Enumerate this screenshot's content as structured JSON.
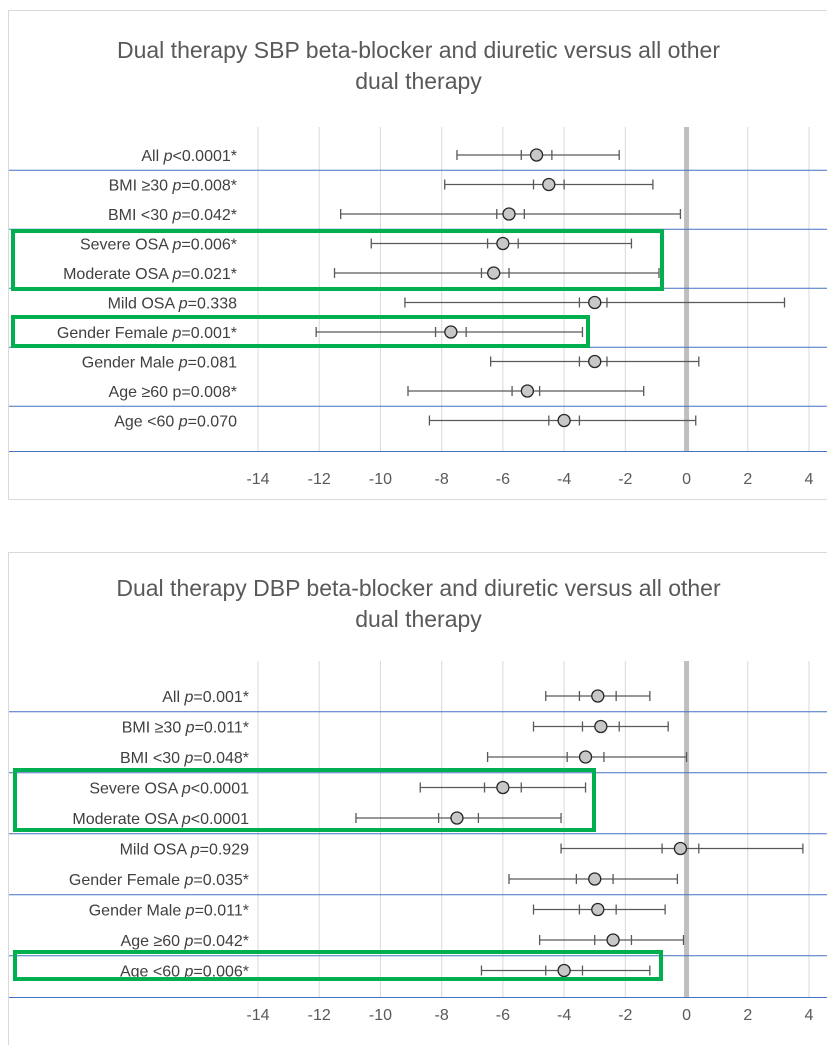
{
  "chart_data": [
    {
      "type": "forest",
      "title_lines": [
        "Dual therapy SBP beta-blocker and diuretic versus all other",
        "dual therapy"
      ],
      "xlim": [
        -14,
        4
      ],
      "xticks": [
        -14,
        -12,
        -10,
        -8,
        -6,
        -4,
        -2,
        0,
        2,
        4
      ],
      "grid": true,
      "rows": [
        {
          "label": "All ",
          "p": "p",
          "p_value": "<0.0001*",
          "mean": -4.9,
          "ci_low": -7.5,
          "ci_high": -2.2,
          "inner_low": -5.4,
          "inner_high": -4.4
        },
        {
          "label": "BMI ≥30 ",
          "p": "p",
          "p_value": "=0.008*",
          "mean": -4.5,
          "ci_low": -7.9,
          "ci_high": -1.1,
          "inner_low": -5.0,
          "inner_high": -4.0
        },
        {
          "label": "BMI <30 ",
          "p": "p",
          "p_value": "=0.042*",
          "mean": -5.8,
          "ci_low": -11.3,
          "ci_high": -0.2,
          "inner_low": -6.2,
          "inner_high": -5.3
        },
        {
          "label": "Severe OSA ",
          "p": "p",
          "p_value": "=0.006*",
          "mean": -6.0,
          "ci_low": -10.3,
          "ci_high": -1.8,
          "inner_low": -6.5,
          "inner_high": -5.5
        },
        {
          "label": "Moderate OSA ",
          "p": "p",
          "p_value": "=0.021*",
          "mean": -6.3,
          "ci_low": -11.5,
          "ci_high": -0.9,
          "inner_low": -6.7,
          "inner_high": -5.8
        },
        {
          "label": "Mild OSA ",
          "p": "p",
          "p_value": "=0.338",
          "mean": -3.0,
          "ci_low": -9.2,
          "ci_high": 3.2,
          "inner_low": -3.5,
          "inner_high": -2.6
        },
        {
          "label": "Gender Female ",
          "p": "p",
          "p_value": "=0.001*",
          "mean": -7.7,
          "ci_low": -12.1,
          "ci_high": -3.4,
          "inner_low": -8.2,
          "inner_high": -7.2
        },
        {
          "label": "Gender Male ",
          "p": "p",
          "p_value": "=0.081",
          "mean": -3.0,
          "ci_low": -6.4,
          "ci_high": 0.4,
          "inner_low": -3.5,
          "inner_high": -2.6
        },
        {
          "label": "Age ≥60 p=0.008*",
          "p": "",
          "p_value": "",
          "mean": -5.2,
          "ci_low": -9.1,
          "ci_high": -1.4,
          "inner_low": -5.7,
          "inner_high": -4.8
        },
        {
          "label": "Age <60 ",
          "p": "p",
          "p_value": "=0.070",
          "mean": -4.0,
          "ci_low": -8.4,
          "ci_high": 0.3,
          "inner_low": -4.5,
          "inner_high": -3.5
        }
      ],
      "highlight_groups": [
        [
          3,
          4
        ],
        [
          6
        ]
      ],
      "colors": {
        "marker_fill": "#c8c8c8",
        "line": "#595959",
        "separator": "#4472c4",
        "highlight": "#00b050",
        "zero_line": "#bfbfbf"
      }
    },
    {
      "type": "forest",
      "title_lines": [
        "Dual therapy DBP beta-blocker and diuretic versus all other",
        "dual therapy"
      ],
      "xlim": [
        -14,
        4
      ],
      "xticks": [
        -14,
        -12,
        -10,
        -8,
        -6,
        -4,
        -2,
        0,
        2,
        4
      ],
      "grid": true,
      "rows": [
        {
          "label": "All ",
          "p": "p",
          "p_value": "=0.001*",
          "mean": -2.9,
          "ci_low": -4.6,
          "ci_high": -1.2,
          "inner_low": -3.5,
          "inner_high": -2.3
        },
        {
          "label": "BMI ≥30 ",
          "p": "p",
          "p_value": "=0.011*",
          "mean": -2.8,
          "ci_low": -5.0,
          "ci_high": -0.6,
          "inner_low": -3.4,
          "inner_high": -2.2
        },
        {
          "label": "BMI <30 ",
          "p": "p",
          "p_value": "=0.048*",
          "mean": -3.3,
          "ci_low": -6.5,
          "ci_high": 0.0,
          "inner_low": -3.9,
          "inner_high": -2.7
        },
        {
          "label": "Severe OSA ",
          "p": "p",
          "p_value": "<0.0001",
          "mean": -6.0,
          "ci_low": -8.7,
          "ci_high": -3.3,
          "inner_low": -6.6,
          "inner_high": -5.4
        },
        {
          "label": "Moderate OSA ",
          "p": "p",
          "p_value": "<0.0001",
          "mean": -7.5,
          "ci_low": -10.8,
          "ci_high": -4.1,
          "inner_low": -8.1,
          "inner_high": -6.8
        },
        {
          "label": "Mild OSA ",
          "p": "p",
          "p_value": "=0.929",
          "mean": -0.2,
          "ci_low": -4.1,
          "ci_high": 3.8,
          "inner_low": -0.8,
          "inner_high": 0.4
        },
        {
          "label": "Gender Female ",
          "p": "p",
          "p_value": "=0.035*",
          "mean": -3.0,
          "ci_low": -5.8,
          "ci_high": -0.3,
          "inner_low": -3.6,
          "inner_high": -2.4
        },
        {
          "label": "Gender Male ",
          "p": "p",
          "p_value": "=0.011*",
          "mean": -2.9,
          "ci_low": -5.0,
          "ci_high": -0.7,
          "inner_low": -3.5,
          "inner_high": -2.3
        },
        {
          "label": "Age ≥60 ",
          "p": "p",
          "p_value": "=0.042*",
          "mean": -2.4,
          "ci_low": -4.8,
          "ci_high": -0.1,
          "inner_low": -3.0,
          "inner_high": -1.8
        },
        {
          "label": "Age <60 ",
          "p": "p",
          "p_value": "=0.006*",
          "mean": -4.0,
          "ci_low": -6.7,
          "ci_high": -1.2,
          "inner_low": -4.6,
          "inner_high": -3.4
        }
      ],
      "highlight_groups": [
        [
          3,
          4
        ],
        [
          9
        ]
      ],
      "colors": {
        "marker_fill": "#c8c8c8",
        "line": "#595959",
        "separator": "#4472c4",
        "highlight": "#00b050",
        "zero_line": "#bfbfbf"
      }
    }
  ]
}
